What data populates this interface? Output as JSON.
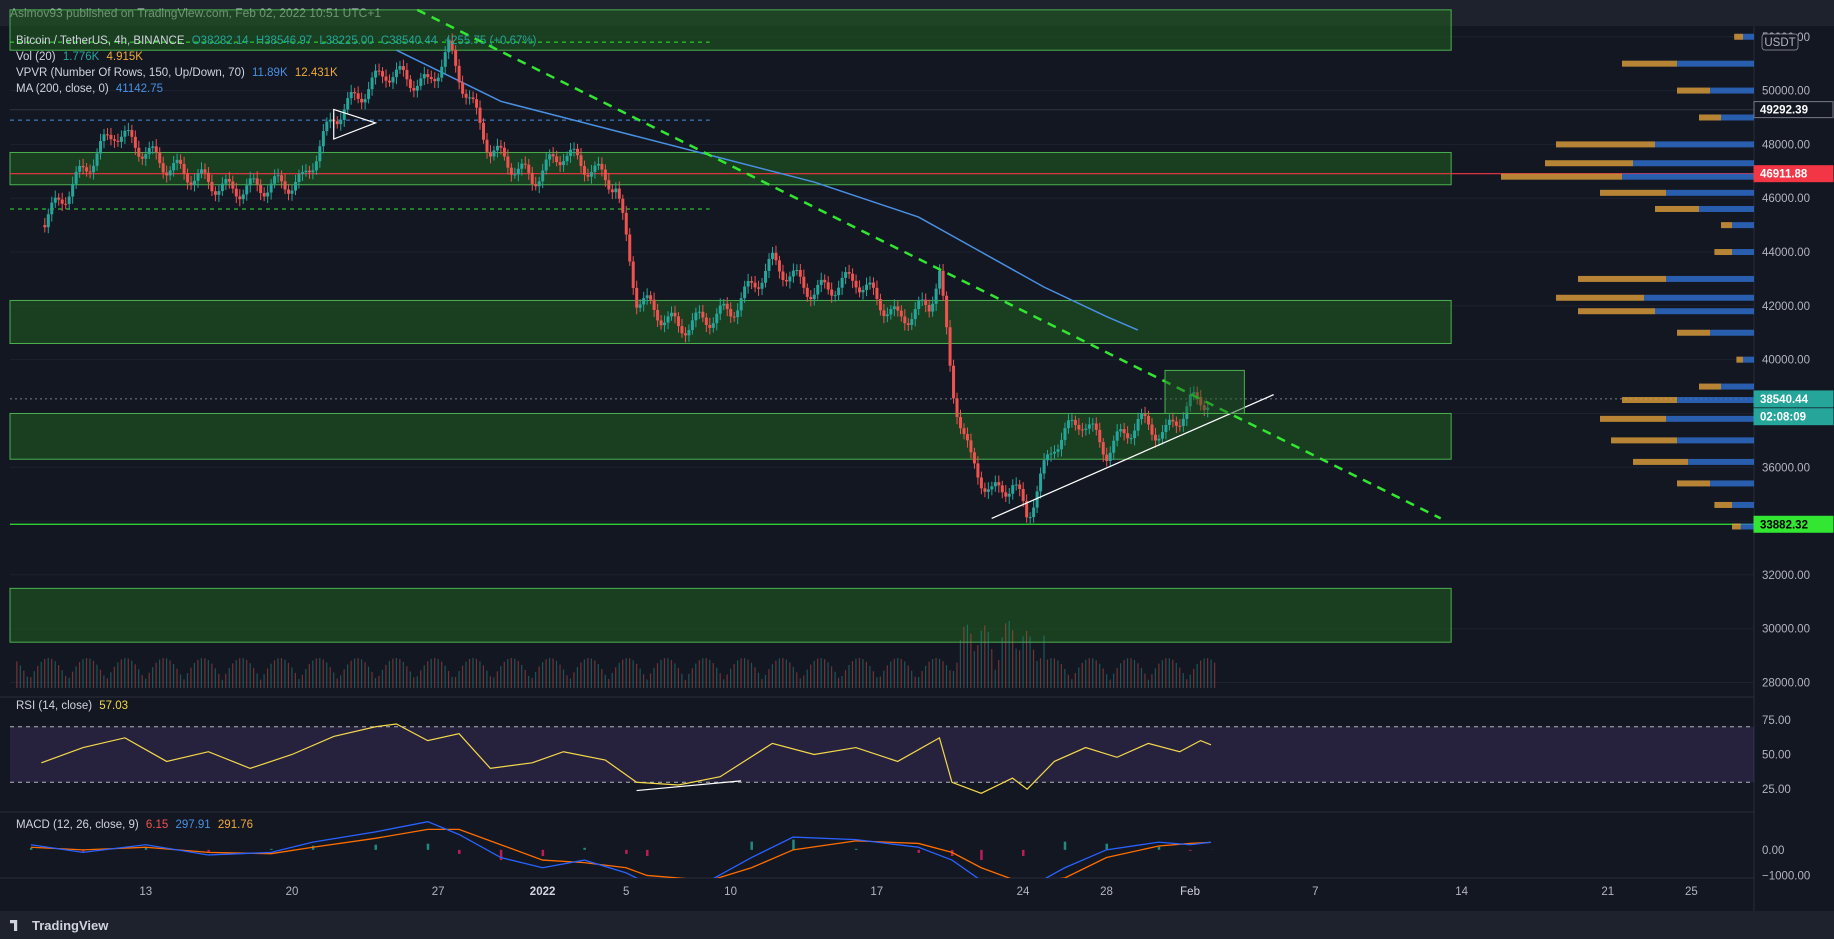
{
  "header": {
    "published": "Asimov93 published on TradingView.com, Feb 02, 2022 10:51 UTC+1"
  },
  "footer": {
    "brand": "TradingView"
  },
  "legend": {
    "symbol": "Bitcoin / TetherUS, 4h, BINANCE",
    "open": "O38282.14",
    "high": "H38546.97",
    "low": "L38225.00",
    "close": "C38540.44",
    "change": "+255.75 (+0.67%)",
    "vol_label": "Vol (20)",
    "vol_val1": "1.776K",
    "vol_val2": "4.915K",
    "vpvr_label": "VPVR (Number Of Rows, 150, Up/Down, 70)",
    "vpvr_val1": "11.89K",
    "vpvr_val2": "12.431K",
    "ma_label": "MA (200, close, 0)",
    "ma_val": "41142.75",
    "rsi_label": "RSI (14, close)",
    "rsi_val": "57.03",
    "macd_label": "MACD (12, 26, close, 9)",
    "macd_val1": "6.15",
    "macd_val2": "297.91",
    "macd_val3": "291.76"
  },
  "colors": {
    "up": "#26a69a",
    "down": "#ef5350",
    "ma": "#4a90e2",
    "zone_fill": "#1f5f1f",
    "zone_line": "#4caf50",
    "trend": "#32e632",
    "support": "#ffffff",
    "level_red": "#f23645",
    "rsi": "#f5d84b",
    "macd": "#2962ff",
    "signal": "#ff6d00"
  },
  "chart_data": {
    "type": "candlestick",
    "currency": "USDT",
    "yticks": [
      52000,
      50000,
      48000,
      46000,
      44000,
      42000,
      40000,
      38000,
      36000,
      34000,
      32000,
      30000,
      28000
    ],
    "ylim": [
      27500,
      52400
    ],
    "xticks": [
      {
        "label": "13",
        "day": 13
      },
      {
        "label": "20",
        "day": 20
      },
      {
        "label": "27",
        "day": 27
      },
      {
        "label": "2022",
        "day": 32
      },
      {
        "label": "5",
        "day": 36
      },
      {
        "label": "10",
        "day": 41
      },
      {
        "label": "17",
        "day": 48
      },
      {
        "label": "24",
        "day": 55
      },
      {
        "label": "28",
        "day": 59
      },
      {
        "label": "Feb",
        "day": 63
      },
      {
        "label": "7",
        "day": 69
      },
      {
        "label": "14",
        "day": 76
      },
      {
        "label": "21",
        "day": 83
      },
      {
        "label": "25",
        "day": 87
      }
    ],
    "price_labels": [
      {
        "text": "49292.39",
        "price": 49292.39,
        "bg": "#131722",
        "fg": "#ffffff"
      },
      {
        "text": "46911.88",
        "price": 46911.88,
        "bg": "#f23645",
        "fg": "#ffffff"
      },
      {
        "text": "38540.44",
        "price": 38540.44,
        "bg": "#26a69a",
        "fg": "#ffffff"
      },
      {
        "text": "02:08:09",
        "price": 37880,
        "bg": "#26a69a",
        "fg": "#ffffff"
      },
      {
        "text": "33882.32",
        "price": 33882.32,
        "bg": "#32e632",
        "fg": "#000000"
      }
    ],
    "zones": [
      {
        "from": 51500,
        "to": 53000
      },
      {
        "from": 46500,
        "to": 47700
      },
      {
        "from": 40600,
        "to": 42200
      },
      {
        "from": 36300,
        "to": 38000
      },
      {
        "from": 29500,
        "to": 31500
      }
    ],
    "key_prices": [
      {
        "day": 8.0,
        "price": 45000
      },
      {
        "day": 11.5,
        "price": 48500
      },
      {
        "day": 14.0,
        "price": 47200
      },
      {
        "day": 17.0,
        "price": 46300
      },
      {
        "day": 20.5,
        "price": 46600
      },
      {
        "day": 22.0,
        "price": 49000
      },
      {
        "day": 24.5,
        "price": 50700
      },
      {
        "day": 26.5,
        "price": 50200
      },
      {
        "day": 27.5,
        "price": 51500
      },
      {
        "day": 29.5,
        "price": 47800
      },
      {
        "day": 31.5,
        "price": 46700
      },
      {
        "day": 33.0,
        "price": 47700
      },
      {
        "day": 35.5,
        "price": 46500
      },
      {
        "day": 36.5,
        "price": 42300
      },
      {
        "day": 38.5,
        "price": 41200
      },
      {
        "day": 41.0,
        "price": 41800
      },
      {
        "day": 43.0,
        "price": 43600
      },
      {
        "day": 45.0,
        "price": 42500
      },
      {
        "day": 47.0,
        "price": 43000
      },
      {
        "day": 49.0,
        "price": 41500
      },
      {
        "day": 50.5,
        "price": 42000
      },
      {
        "day": 51.0,
        "price": 43300
      },
      {
        "day": 51.6,
        "price": 39000
      },
      {
        "day": 52.5,
        "price": 36200
      },
      {
        "day": 53.5,
        "price": 35000
      },
      {
        "day": 54.5,
        "price": 35400
      },
      {
        "day": 55.2,
        "price": 34200
      },
      {
        "day": 56.5,
        "price": 36900
      },
      {
        "day": 57.8,
        "price": 37800
      },
      {
        "day": 59.0,
        "price": 36600
      },
      {
        "day": 60.5,
        "price": 37700
      },
      {
        "day": 61.8,
        "price": 37200
      },
      {
        "day": 63.0,
        "price": 38400
      },
      {
        "day": 64.0,
        "price": 38540
      }
    ],
    "ma200": [
      {
        "day": 25.0,
        "price": 51500
      },
      {
        "day": 30.0,
        "price": 49600
      },
      {
        "day": 35.0,
        "price": 48600
      },
      {
        "day": 40.0,
        "price": 47600
      },
      {
        "day": 45.0,
        "price": 46600
      },
      {
        "day": 50.0,
        "price": 45300
      },
      {
        "day": 53.0,
        "price": 44000
      },
      {
        "day": 56.0,
        "price": 42700
      },
      {
        "day": 59.0,
        "price": 41600
      },
      {
        "day": 60.5,
        "price": 41100
      }
    ],
    "triangle": [
      {
        "day": 22.0,
        "price": 49300
      },
      {
        "day": 24.0,
        "price": 48800
      },
      {
        "day": 22.0,
        "price": 48200
      }
    ],
    "downtrend": [
      {
        "day": 26.0,
        "price": 53000
      },
      {
        "day": 75.0,
        "price": 34100
      }
    ],
    "uptrend": [
      {
        "day": 53.5,
        "price": 34100
      },
      {
        "day": 67.0,
        "price": 38700
      }
    ],
    "consolidation_box": {
      "day_from": 61.8,
      "day_to": 65.6,
      "from": 38000,
      "to": 39600
    },
    "level_lines": [
      {
        "price": 49292.39,
        "style": "solid",
        "color": "#2a2e39"
      },
      {
        "price": 46911.88,
        "style": "solid",
        "color": "#f23645"
      },
      {
        "price": 33882.32,
        "style": "solid",
        "color": "#32e632"
      },
      {
        "price": 38540.44,
        "style": "dotted",
        "color": "#787b86"
      }
    ],
    "dashed_levels": [
      {
        "price": 51800,
        "day_to": 40,
        "color": "#32e632"
      },
      {
        "price": 48900,
        "day_to": 40,
        "color": "#4a90e2"
      },
      {
        "price": 45600,
        "day_to": 40,
        "color": "#32e632"
      }
    ],
    "vpvr_profile": [
      {
        "price": 52000,
        "up": 0.05,
        "down": 0.04
      },
      {
        "price": 51000,
        "up": 0.35,
        "down": 0.25
      },
      {
        "price": 50000,
        "up": 0.2,
        "down": 0.15
      },
      {
        "price": 49000,
        "up": 0.15,
        "down": 0.1
      },
      {
        "price": 48000,
        "up": 0.45,
        "down": 0.45
      },
      {
        "price": 47300,
        "up": 0.55,
        "down": 0.4
      },
      {
        "price": 46800,
        "up": 0.6,
        "down": 0.55
      },
      {
        "price": 46200,
        "up": 0.4,
        "down": 0.3
      },
      {
        "price": 45600,
        "up": 0.25,
        "down": 0.2
      },
      {
        "price": 45000,
        "up": 0.1,
        "down": 0.05
      },
      {
        "price": 44000,
        "up": 0.1,
        "down": 0.08
      },
      {
        "price": 43000,
        "up": 0.4,
        "down": 0.4
      },
      {
        "price": 42300,
        "up": 0.5,
        "down": 0.4
      },
      {
        "price": 41800,
        "up": 0.45,
        "down": 0.35
      },
      {
        "price": 41000,
        "up": 0.2,
        "down": 0.15
      },
      {
        "price": 40000,
        "up": 0.05,
        "down": 0.03
      },
      {
        "price": 39000,
        "up": 0.15,
        "down": 0.1
      },
      {
        "price": 38500,
        "up": 0.35,
        "down": 0.25
      },
      {
        "price": 37800,
        "up": 0.4,
        "down": 0.3
      },
      {
        "price": 37000,
        "up": 0.35,
        "down": 0.3
      },
      {
        "price": 36200,
        "up": 0.3,
        "down": 0.25
      },
      {
        "price": 35400,
        "up": 0.2,
        "down": 0.15
      },
      {
        "price": 34600,
        "up": 0.1,
        "down": 0.08
      },
      {
        "price": 33800,
        "up": 0.06,
        "down": 0.04
      }
    ],
    "rsi": {
      "yticks": [
        75,
        50,
        25
      ],
      "bands": [
        70,
        30
      ],
      "ylim": [
        10,
        90
      ],
      "values": [
        {
          "day": 8.0,
          "v": 44
        },
        {
          "day": 10.0,
          "v": 55
        },
        {
          "day": 12.0,
          "v": 62
        },
        {
          "day": 14.0,
          "v": 45
        },
        {
          "day": 16.0,
          "v": 52
        },
        {
          "day": 18.0,
          "v": 40
        },
        {
          "day": 20.0,
          "v": 50
        },
        {
          "day": 22.0,
          "v": 63
        },
        {
          "day": 24.0,
          "v": 70
        },
        {
          "day": 25.0,
          "v": 72
        },
        {
          "day": 26.5,
          "v": 60
        },
        {
          "day": 28.0,
          "v": 65
        },
        {
          "day": 29.5,
          "v": 40
        },
        {
          "day": 31.5,
          "v": 44
        },
        {
          "day": 33.0,
          "v": 52
        },
        {
          "day": 35.0,
          "v": 46
        },
        {
          "day": 36.5,
          "v": 30
        },
        {
          "day": 38.5,
          "v": 28
        },
        {
          "day": 40.5,
          "v": 34
        },
        {
          "day": 43.0,
          "v": 58
        },
        {
          "day": 45.0,
          "v": 50
        },
        {
          "day": 47.0,
          "v": 55
        },
        {
          "day": 49.0,
          "v": 45
        },
        {
          "day": 51.0,
          "v": 62
        },
        {
          "day": 51.6,
          "v": 30
        },
        {
          "day": 53.0,
          "v": 22
        },
        {
          "day": 54.5,
          "v": 33
        },
        {
          "day": 55.2,
          "v": 25
        },
        {
          "day": 56.5,
          "v": 45
        },
        {
          "day": 58.0,
          "v": 55
        },
        {
          "day": 59.5,
          "v": 48
        },
        {
          "day": 61.0,
          "v": 58
        },
        {
          "day": 62.5,
          "v": 52
        },
        {
          "day": 63.5,
          "v": 60
        },
        {
          "day": 64.0,
          "v": 57
        }
      ],
      "divergence_line": [
        {
          "day": 36.5,
          "v": 24
        },
        {
          "day": 41.5,
          "v": 31
        }
      ]
    },
    "macd": {
      "yticks": [
        0,
        -1000
      ],
      "ytick_labels": [
        "0.00",
        "−1000.00"
      ],
      "ylim": [
        -1100,
        1400
      ],
      "macd": [
        {
          "day": 7.5,
          "v": 200
        },
        {
          "day": 10.0,
          "v": -100
        },
        {
          "day": 13.0,
          "v": 200
        },
        {
          "day": 16.0,
          "v": -200
        },
        {
          "day": 19.0,
          "v": -100
        },
        {
          "day": 21.0,
          "v": 300
        },
        {
          "day": 24.0,
          "v": 700
        },
        {
          "day": 26.5,
          "v": 1100
        },
        {
          "day": 28.0,
          "v": 600
        },
        {
          "day": 30.0,
          "v": -300
        },
        {
          "day": 32.0,
          "v": -700
        },
        {
          "day": 34.0,
          "v": -400
        },
        {
          "day": 36.0,
          "v": -900
        },
        {
          "day": 37.0,
          "v": -1300
        },
        {
          "day": 40.0,
          "v": -1200
        },
        {
          "day": 42.0,
          "v": -300
        },
        {
          "day": 44.0,
          "v": 500
        },
        {
          "day": 47.0,
          "v": 400
        },
        {
          "day": 50.0,
          "v": 100
        },
        {
          "day": 51.6,
          "v": -400
        },
        {
          "day": 53.0,
          "v": -1200
        },
        {
          "day": 55.0,
          "v": -1600
        },
        {
          "day": 57.0,
          "v": -700
        },
        {
          "day": 59.0,
          "v": 0
        },
        {
          "day": 61.5,
          "v": 300
        },
        {
          "day": 63.0,
          "v": 200
        },
        {
          "day": 64.0,
          "v": 298
        }
      ],
      "signal": [
        {
          "day": 7.5,
          "v": 100
        },
        {
          "day": 10.0,
          "v": 0
        },
        {
          "day": 13.0,
          "v": 100
        },
        {
          "day": 16.0,
          "v": -100
        },
        {
          "day": 19.0,
          "v": -150
        },
        {
          "day": 21.0,
          "v": 100
        },
        {
          "day": 24.0,
          "v": 450
        },
        {
          "day": 26.5,
          "v": 800
        },
        {
          "day": 28.0,
          "v": 800
        },
        {
          "day": 30.0,
          "v": 200
        },
        {
          "day": 32.0,
          "v": -400
        },
        {
          "day": 34.0,
          "v": -500
        },
        {
          "day": 36.0,
          "v": -700
        },
        {
          "day": 37.0,
          "v": -1000
        },
        {
          "day": 40.0,
          "v": -1200
        },
        {
          "day": 42.0,
          "v": -700
        },
        {
          "day": 44.0,
          "v": 0
        },
        {
          "day": 47.0,
          "v": 350
        },
        {
          "day": 50.0,
          "v": 250
        },
        {
          "day": 51.6,
          "v": -100
        },
        {
          "day": 53.0,
          "v": -700
        },
        {
          "day": 55.0,
          "v": -1300
        },
        {
          "day": 57.0,
          "v": -1100
        },
        {
          "day": 59.0,
          "v": -300
        },
        {
          "day": 61.5,
          "v": 150
        },
        {
          "day": 63.0,
          "v": 250
        },
        {
          "day": 64.0,
          "v": 292
        }
      ]
    }
  }
}
